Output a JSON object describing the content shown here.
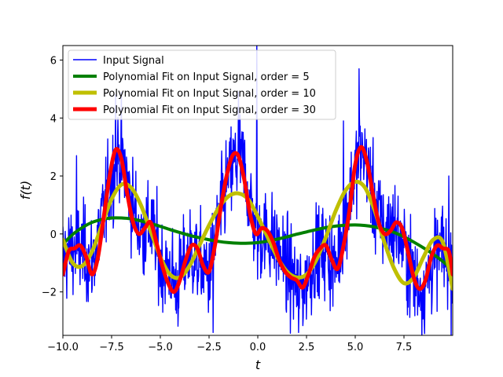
{
  "chart_data": {
    "type": "line",
    "title": "",
    "xlabel": "t",
    "ylabel": "f(t)",
    "xlim": [
      -10,
      10
    ],
    "ylim": [
      -3.5,
      6.5
    ],
    "x_ticks": [
      -10.0,
      -7.5,
      -5.0,
      -2.5,
      0.0,
      2.5,
      5.0,
      7.5
    ],
    "x_tick_labels": [
      "−10.0",
      "−7.5",
      "−5.0",
      "−2.5",
      "0.0",
      "2.5",
      "5.0",
      "7.5"
    ],
    "y_ticks": [
      -2,
      0,
      2,
      4,
      6
    ],
    "y_tick_labels": [
      "−2",
      "0",
      "2",
      "4",
      "6"
    ],
    "grid": false,
    "legend_position": "top-left",
    "series": [
      {
        "name": "Input Signal",
        "color": "#0000ff",
        "style": "noisy",
        "envelope_x": [
          -10,
          -9.5,
          -9,
          -8.5,
          -8,
          -7.5,
          -7.2,
          -7,
          -6.5,
          -6,
          -5.5,
          -5,
          -4.5,
          -4.2,
          -4,
          -3.5,
          -3,
          -2.5,
          -2,
          -1.5,
          -1,
          -0.8,
          -0.5,
          0,
          0.5,
          1,
          1.5,
          2,
          2.3,
          2.5,
          3,
          3.5,
          4,
          4.5,
          5,
          5.3,
          5.5,
          6,
          6.5,
          7,
          7.5,
          8,
          8.5,
          9,
          9.5,
          10
        ],
        "envelope_center": [
          -0.8,
          -0.5,
          -0.6,
          -1.0,
          0.5,
          1.8,
          2.8,
          2.7,
          1.2,
          0.0,
          0.3,
          -1.0,
          -1.2,
          -1.9,
          -1.5,
          -0.6,
          -1.0,
          -1.4,
          0.5,
          2.0,
          2.7,
          2.6,
          1.5,
          -0.1,
          0.0,
          -0.5,
          -1.2,
          -1.8,
          -1.9,
          -1.6,
          -0.6,
          -0.6,
          -1.2,
          0.6,
          2.2,
          2.9,
          2.7,
          1.0,
          0.2,
          0.3,
          -0.5,
          -1.5,
          -1.9,
          -0.9,
          -0.5,
          -1.3
        ],
        "amplitude": 1.6,
        "peaks": [
          [
            -0.06,
            6.7
          ],
          [
            5.2,
            5.7
          ],
          [
            -1.0,
            4.9
          ],
          [
            -7.3,
            4.8
          ],
          [
            2.1,
            -3.4
          ],
          [
            -2.3,
            -3.4
          ],
          [
            4.4,
            3.9
          ],
          [
            8.2,
            -2.8
          ],
          [
            -9.3,
            2.7
          ],
          [
            9.8,
            2.0
          ]
        ]
      },
      {
        "name": "Polynomial Fit on Input Signal, order = 5",
        "color": "#008000",
        "line_width": 4,
        "x": [
          -10,
          -9.5,
          -9,
          -8.5,
          -8,
          -7.5,
          -7,
          -6.5,
          -6,
          -5.5,
          -5,
          -4.5,
          -4,
          -3.5,
          -3,
          -2.5,
          -2,
          -1.5,
          -1,
          -0.5,
          0,
          0.5,
          1,
          1.5,
          2,
          2.5,
          3,
          3.5,
          4,
          4.5,
          5,
          5.5,
          6,
          6.5,
          7,
          7.5,
          8,
          8.5,
          9,
          9.5,
          10
        ],
        "y": [
          -0.35,
          -0.02,
          0.22,
          0.4,
          0.5,
          0.55,
          0.55,
          0.52,
          0.45,
          0.36,
          0.26,
          0.15,
          0.05,
          -0.05,
          -0.13,
          -0.2,
          -0.26,
          -0.3,
          -0.32,
          -0.32,
          -0.3,
          -0.25,
          -0.18,
          -0.1,
          -0.01,
          0.07,
          0.15,
          0.22,
          0.27,
          0.3,
          0.31,
          0.29,
          0.24,
          0.16,
          0.05,
          -0.1,
          -0.28,
          -0.48,
          -0.7,
          -0.95,
          -1.25
        ]
      },
      {
        "name": "Polynomial Fit on Input Signal, order = 10",
        "color": "#bfbf00",
        "line_width": 5,
        "x": [
          -10,
          -9.5,
          -9,
          -8.5,
          -8,
          -7.5,
          -7,
          -6.5,
          -6,
          -5.5,
          -5,
          -4.5,
          -4,
          -3.5,
          -3,
          -2.5,
          -2,
          -1.5,
          -1,
          -0.5,
          0,
          0.5,
          1,
          1.5,
          2,
          2.5,
          3,
          3.5,
          4,
          4.5,
          5,
          5.5,
          6,
          6.5,
          7,
          7.5,
          8,
          8.5,
          9,
          9.5,
          10
        ],
        "y": [
          -0.2,
          -1.0,
          -1.1,
          -0.6,
          0.3,
          1.2,
          1.7,
          1.6,
          1.0,
          0.1,
          -0.8,
          -1.4,
          -1.5,
          -1.1,
          -0.4,
          0.3,
          0.9,
          1.3,
          1.4,
          1.2,
          0.6,
          -0.1,
          -0.8,
          -1.3,
          -1.5,
          -1.4,
          -0.9,
          -0.1,
          0.8,
          1.5,
          1.8,
          1.6,
          0.8,
          -0.3,
          -1.2,
          -1.7,
          -1.5,
          -0.8,
          -0.2,
          -0.3,
          -1.9
        ]
      },
      {
        "name": "Polynomial Fit on Input Signal, order = 30",
        "color": "#ff0000",
        "line_width": 5,
        "x": [
          -10,
          -9.7,
          -9.4,
          -9.1,
          -8.8,
          -8.5,
          -8.2,
          -7.9,
          -7.6,
          -7.3,
          -7.0,
          -6.7,
          -6.4,
          -6.1,
          -5.8,
          -5.5,
          -5.2,
          -4.9,
          -4.6,
          -4.3,
          -4.0,
          -3.7,
          -3.4,
          -3.1,
          -2.8,
          -2.5,
          -2.2,
          -1.9,
          -1.6,
          -1.3,
          -1.0,
          -0.7,
          -0.4,
          -0.1,
          0.2,
          0.5,
          0.8,
          1.1,
          1.4,
          1.7,
          2.0,
          2.3,
          2.6,
          2.9,
          3.2,
          3.5,
          3.8,
          4.1,
          4.4,
          4.7,
          5.0,
          5.3,
          5.6,
          5.9,
          6.2,
          6.5,
          6.8,
          7.1,
          7.4,
          7.7,
          8.0,
          8.3,
          8.6,
          8.9,
          9.2,
          9.5,
          9.8,
          10
        ],
        "y": [
          -1.4,
          -0.6,
          -0.5,
          -0.4,
          -0.8,
          -1.4,
          -0.8,
          0.6,
          2.0,
          2.9,
          2.6,
          1.4,
          0.4,
          0.0,
          0.2,
          0.4,
          -0.3,
          -1.1,
          -1.7,
          -2.0,
          -1.6,
          -0.9,
          -0.4,
          -0.5,
          -1.1,
          -1.3,
          -0.4,
          0.9,
          2.0,
          2.7,
          2.7,
          1.9,
          0.7,
          0.0,
          0.2,
          0.1,
          -0.3,
          -0.9,
          -1.3,
          -1.5,
          -1.6,
          -1.85,
          -1.4,
          -0.8,
          -0.5,
          -0.4,
          -0.9,
          -1.2,
          -0.4,
          0.8,
          2.4,
          3.0,
          2.5,
          1.4,
          0.4,
          0.0,
          0.1,
          0.4,
          0.2,
          -0.6,
          -1.5,
          -1.9,
          -1.6,
          -0.8,
          -0.4,
          -0.5,
          -0.6,
          -1.4
        ]
      }
    ]
  }
}
